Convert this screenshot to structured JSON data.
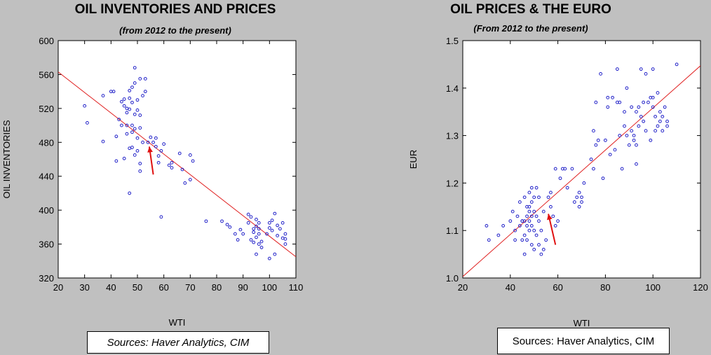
{
  "chart_data": [
    {
      "type": "scatter",
      "title": "OIL INVENTORIES AND PRICES",
      "subtitle": "(from 2012 to the present)",
      "xlabel": "WTI",
      "ylabel": "OIL INVENTORIES",
      "xlim": [
        20,
        110
      ],
      "ylim": [
        320,
        600
      ],
      "xticks": [
        20,
        30,
        40,
        50,
        60,
        70,
        80,
        90,
        100,
        110
      ],
      "yticks": [
        320,
        360,
        400,
        440,
        480,
        520,
        560,
        600
      ],
      "grid": false,
      "colors": {
        "points": "#2020c8",
        "fit": "#e02020",
        "arrow": "#e01010"
      },
      "fit_line": {
        "x": [
          20,
          110
        ],
        "y": [
          563,
          345
        ]
      },
      "arrow": {
        "from": [
          56,
          442
        ],
        "to": [
          54.5,
          475
        ]
      },
      "source": "Sources: Haver Analytics, CIM",
      "points": [
        [
          30,
          523
        ],
        [
          31,
          503
        ],
        [
          37,
          535
        ],
        [
          37,
          481
        ],
        [
          40,
          540
        ],
        [
          41,
          540
        ],
        [
          42,
          487
        ],
        [
          42,
          458
        ],
        [
          43,
          507
        ],
        [
          44,
          528
        ],
        [
          44,
          500
        ],
        [
          45,
          523
        ],
        [
          45,
          531
        ],
        [
          45,
          461
        ],
        [
          46,
          520
        ],
        [
          46,
          515
        ],
        [
          46,
          500
        ],
        [
          46,
          490
        ],
        [
          47,
          532
        ],
        [
          47,
          519
        ],
        [
          47,
          541
        ],
        [
          47,
          473
        ],
        [
          47,
          420
        ],
        [
          48,
          545
        ],
        [
          48,
          527
        ],
        [
          48,
          500
        ],
        [
          48,
          492
        ],
        [
          48,
          474
        ],
        [
          49,
          568
        ],
        [
          49,
          550
        ],
        [
          49,
          513
        ],
        [
          49,
          496
        ],
        [
          49,
          465
        ],
        [
          50,
          530
        ],
        [
          50,
          518
        ],
        [
          50,
          485
        ],
        [
          50,
          470
        ],
        [
          51,
          555
        ],
        [
          51,
          512
        ],
        [
          51,
          497
        ],
        [
          51,
          455
        ],
        [
          51,
          446
        ],
        [
          52,
          535
        ],
        [
          52,
          480
        ],
        [
          53,
          555
        ],
        [
          53,
          540
        ],
        [
          54,
          480
        ],
        [
          55,
          486
        ],
        [
          56,
          480
        ],
        [
          57,
          485
        ],
        [
          57,
          475
        ],
        [
          58,
          456
        ],
        [
          58,
          464
        ],
        [
          59,
          470
        ],
        [
          59,
          392
        ],
        [
          60,
          478
        ],
        [
          62,
          453
        ],
        [
          63,
          450
        ],
        [
          63,
          456
        ],
        [
          66,
          467
        ],
        [
          67,
          448
        ],
        [
          68,
          432
        ],
        [
          70,
          465
        ],
        [
          70,
          436
        ],
        [
          71,
          458
        ],
        [
          76,
          387
        ],
        [
          82,
          387
        ],
        [
          84,
          383
        ],
        [
          85,
          380
        ],
        [
          87,
          372
        ],
        [
          88,
          365
        ],
        [
          89,
          377
        ],
        [
          90,
          372
        ],
        [
          92,
          395
        ],
        [
          92,
          385
        ],
        [
          93,
          392
        ],
        [
          93,
          365
        ],
        [
          94,
          374
        ],
        [
          94,
          378
        ],
        [
          94,
          362
        ],
        [
          95,
          389
        ],
        [
          95,
          381
        ],
        [
          95,
          368
        ],
        [
          95,
          348
        ],
        [
          96,
          385
        ],
        [
          96,
          378
        ],
        [
          96,
          372
        ],
        [
          96,
          360
        ],
        [
          97,
          363
        ],
        [
          97,
          356
        ],
        [
          99,
          372
        ],
        [
          100,
          385
        ],
        [
          100,
          379
        ],
        [
          100,
          343
        ],
        [
          101,
          388
        ],
        [
          101,
          376
        ],
        [
          102,
          396
        ],
        [
          102,
          348
        ],
        [
          103,
          382
        ],
        [
          103,
          370
        ],
        [
          104,
          378
        ],
        [
          105,
          385
        ],
        [
          105,
          367
        ],
        [
          106,
          372
        ],
        [
          106,
          366
        ],
        [
          106,
          360
        ]
      ]
    },
    {
      "type": "scatter",
      "title": "OIL PRICES & THE EURO",
      "subtitle": "(From 2012 to the present)",
      "xlabel": "WTI",
      "ylabel": "EUR",
      "xlim": [
        20,
        120
      ],
      "ylim": [
        1.0,
        1.5
      ],
      "xticks": [
        20,
        40,
        60,
        80,
        100,
        120
      ],
      "yticks": [
        1.0,
        1.1,
        1.2,
        1.3,
        1.4,
        1.5
      ],
      "grid": false,
      "colors": {
        "points": "#2020c8",
        "fit": "#e02020",
        "arrow": "#e01010"
      },
      "fit_line": {
        "x": [
          20,
          120
        ],
        "y": [
          1.003,
          1.447
        ]
      },
      "arrow": {
        "from": [
          59,
          1.07
        ],
        "to": [
          56,
          1.135
        ]
      },
      "source": "Sources:  Haver Analytics, CIM",
      "points": [
        [
          30,
          1.11
        ],
        [
          31,
          1.08
        ],
        [
          35,
          1.09
        ],
        [
          37,
          1.11
        ],
        [
          40,
          1.12
        ],
        [
          41,
          1.14
        ],
        [
          42,
          1.08
        ],
        [
          42,
          1.1
        ],
        [
          43,
          1.13
        ],
        [
          44,
          1.16
        ],
        [
          44,
          1.11
        ],
        [
          45,
          1.12
        ],
        [
          45,
          1.12
        ],
        [
          45,
          1.08
        ],
        [
          46,
          1.17
        ],
        [
          46,
          1.12
        ],
        [
          46,
          1.09
        ],
        [
          46,
          1.05
        ],
        [
          47,
          1.15
        ],
        [
          47,
          1.13
        ],
        [
          47,
          1.11
        ],
        [
          47,
          1.08
        ],
        [
          48,
          1.18
        ],
        [
          48,
          1.15
        ],
        [
          48,
          1.14
        ],
        [
          48,
          1.12
        ],
        [
          48,
          1.1
        ],
        [
          49,
          1.19
        ],
        [
          49,
          1.16
        ],
        [
          49,
          1.13
        ],
        [
          49,
          1.11
        ],
        [
          49,
          1.07
        ],
        [
          50,
          1.17
        ],
        [
          50,
          1.14
        ],
        [
          50,
          1.1
        ],
        [
          50,
          1.06
        ],
        [
          51,
          1.19
        ],
        [
          51,
          1.13
        ],
        [
          51,
          1.09
        ],
        [
          52,
          1.17
        ],
        [
          52,
          1.12
        ],
        [
          52,
          1.07
        ],
        [
          53,
          1.1
        ],
        [
          53,
          1.05
        ],
        [
          54,
          1.14
        ],
        [
          54,
          1.06
        ],
        [
          55,
          1.08
        ],
        [
          56,
          1.17
        ],
        [
          57,
          1.15
        ],
        [
          57,
          1.18
        ],
        [
          58,
          1.13
        ],
        [
          59,
          1.23
        ],
        [
          59,
          1.11
        ],
        [
          60,
          1.12
        ],
        [
          61,
          1.21
        ],
        [
          62,
          1.23
        ],
        [
          63,
          1.23
        ],
        [
          64,
          1.19
        ],
        [
          66,
          1.23
        ],
        [
          67,
          1.16
        ],
        [
          68,
          1.17
        ],
        [
          69,
          1.15
        ],
        [
          69,
          1.18
        ],
        [
          70,
          1.16
        ],
        [
          70,
          1.17
        ],
        [
          71,
          1.2
        ],
        [
          74,
          1.25
        ],
        [
          75,
          1.31
        ],
        [
          75,
          1.23
        ],
        [
          76,
          1.28
        ],
        [
          76,
          1.37
        ],
        [
          77,
          1.29
        ],
        [
          78,
          1.43
        ],
        [
          79,
          1.21
        ],
        [
          80,
          1.29
        ],
        [
          81,
          1.36
        ],
        [
          81,
          1.38
        ],
        [
          82,
          1.26
        ],
        [
          83,
          1.38
        ],
        [
          84,
          1.27
        ],
        [
          85,
          1.37
        ],
        [
          85,
          1.44
        ],
        [
          86,
          1.37
        ],
        [
          86,
          1.3
        ],
        [
          87,
          1.23
        ],
        [
          88,
          1.32
        ],
        [
          88,
          1.35
        ],
        [
          89,
          1.3
        ],
        [
          89,
          1.4
        ],
        [
          90,
          1.28
        ],
        [
          91,
          1.36
        ],
        [
          91,
          1.31
        ],
        [
          92,
          1.3
        ],
        [
          92,
          1.29
        ],
        [
          93,
          1.24
        ],
        [
          93,
          1.35
        ],
        [
          93,
          1.28
        ],
        [
          94,
          1.36
        ],
        [
          94,
          1.32
        ],
        [
          95,
          1.44
        ],
        [
          95,
          1.34
        ],
        [
          96,
          1.37
        ],
        [
          96,
          1.33
        ],
        [
          97,
          1.43
        ],
        [
          97,
          1.31
        ],
        [
          98,
          1.37
        ],
        [
          99,
          1.29
        ],
        [
          99,
          1.38
        ],
        [
          100,
          1.44
        ],
        [
          100,
          1.38
        ],
        [
          100,
          1.36
        ],
        [
          101,
          1.34
        ],
        [
          101,
          1.31
        ],
        [
          102,
          1.39
        ],
        [
          102,
          1.32
        ],
        [
          103,
          1.35
        ],
        [
          103,
          1.33
        ],
        [
          104,
          1.34
        ],
        [
          104,
          1.31
        ],
        [
          105,
          1.36
        ],
        [
          106,
          1.33
        ],
        [
          106,
          1.32
        ],
        [
          110,
          1.45
        ]
      ]
    }
  ]
}
